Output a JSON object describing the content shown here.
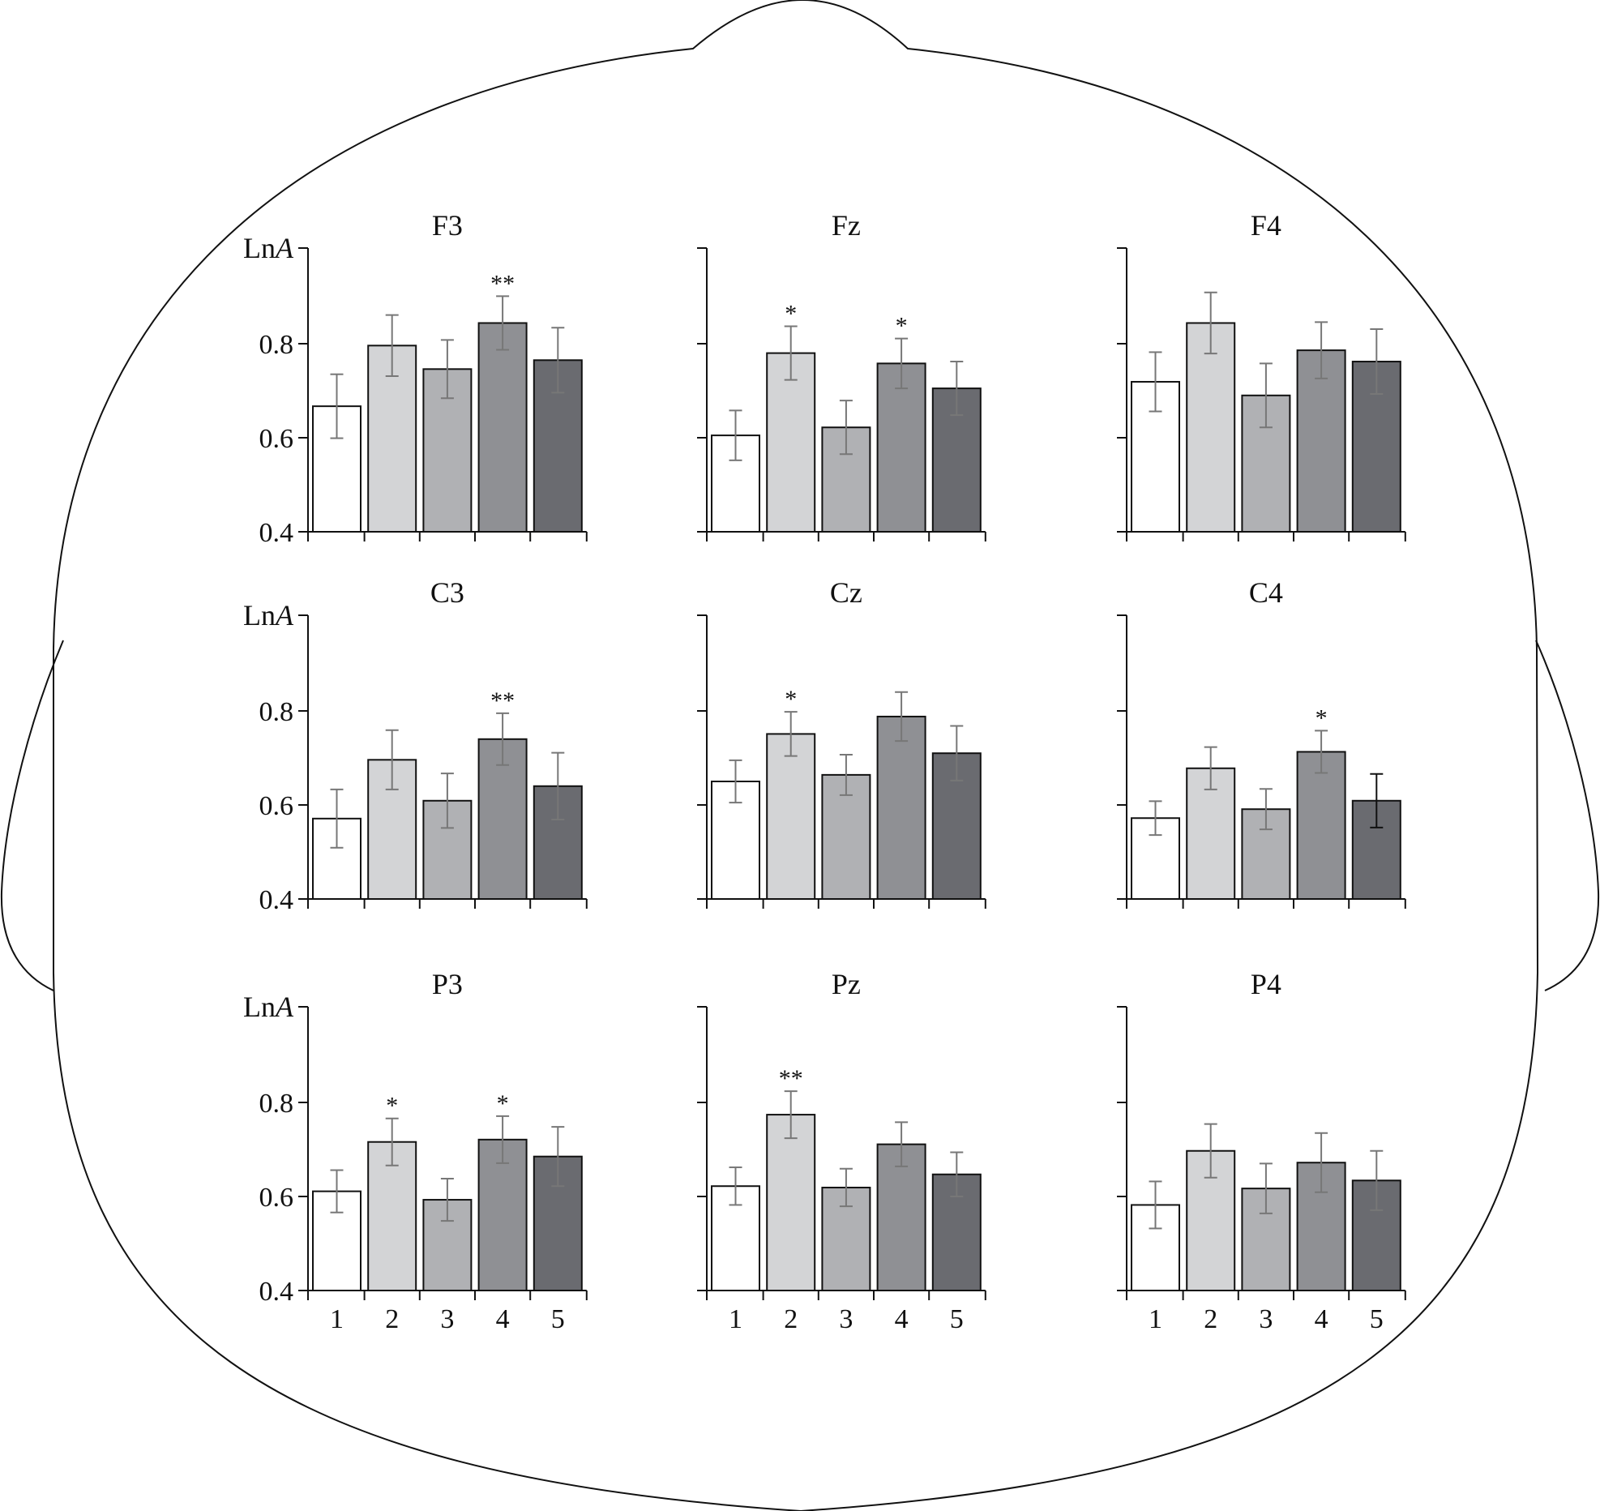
{
  "chart_data": {
    "type": "bar",
    "ylabel_prefix": "Ln",
    "ylabel_italic": "A",
    "ylim": [
      0.4,
      0.85
    ],
    "yticks": [
      "0.4",
      "0.6",
      "0.8"
    ],
    "categories": [
      "1",
      "2",
      "3",
      "4",
      "5"
    ],
    "colors": [
      "#ffffff",
      "#d3d4d6",
      "#b0b1b4",
      "#8f9094",
      "#6a6b70"
    ],
    "panels": [
      {
        "title": "F3",
        "values": [
          0.667,
          0.796,
          0.746,
          0.844,
          0.765
        ],
        "errors": [
          0.068,
          0.065,
          0.062,
          0.057,
          0.069
        ],
        "sig": [
          "",
          "",
          "",
          "**",
          ""
        ]
      },
      {
        "title": "Fz",
        "values": [
          0.605,
          0.78,
          0.622,
          0.758,
          0.705
        ],
        "errors": [
          0.053,
          0.057,
          0.057,
          0.053,
          0.057
        ],
        "sig": [
          "",
          "*",
          "",
          "*",
          ""
        ]
      },
      {
        "title": "F4",
        "values": [
          0.719,
          0.844,
          0.69,
          0.786,
          0.762
        ],
        "errors": [
          0.063,
          0.065,
          0.068,
          0.06,
          0.069
        ],
        "sig": [
          "",
          "",
          "",
          "",
          ""
        ]
      },
      {
        "title": "C3",
        "values": [
          0.571,
          0.696,
          0.609,
          0.74,
          0.64
        ],
        "errors": [
          0.062,
          0.063,
          0.058,
          0.055,
          0.071
        ],
        "sig": [
          "",
          "",
          "",
          "**",
          ""
        ]
      },
      {
        "title": "Cz",
        "values": [
          0.65,
          0.751,
          0.664,
          0.788,
          0.71
        ],
        "errors": [
          0.045,
          0.047,
          0.043,
          0.052,
          0.058
        ],
        "sig": [
          "",
          "*",
          "",
          "",
          ""
        ]
      },
      {
        "title": "C4",
        "values": [
          0.572,
          0.678,
          0.591,
          0.713,
          0.609
        ],
        "errors": [
          0.036,
          0.045,
          0.043,
          0.045,
          0.057
        ],
        "sig": [
          "",
          "",
          "",
          "*",
          ""
        ]
      },
      {
        "title": "P3",
        "values": [
          0.611,
          0.716,
          0.593,
          0.721,
          0.685
        ],
        "errors": [
          0.045,
          0.05,
          0.045,
          0.05,
          0.063
        ],
        "sig": [
          "",
          "*",
          "",
          "*",
          ""
        ]
      },
      {
        "title": "Pz",
        "values": [
          0.622,
          0.774,
          0.619,
          0.711,
          0.647
        ],
        "errors": [
          0.04,
          0.05,
          0.04,
          0.047,
          0.047
        ],
        "sig": [
          "",
          "**",
          "",
          "",
          ""
        ]
      },
      {
        "title": "P4",
        "values": [
          0.582,
          0.697,
          0.617,
          0.672,
          0.634
        ],
        "errors": [
          0.05,
          0.057,
          0.053,
          0.063,
          0.063
        ],
        "sig": [
          "",
          "",
          "",
          "",
          ""
        ]
      }
    ]
  }
}
